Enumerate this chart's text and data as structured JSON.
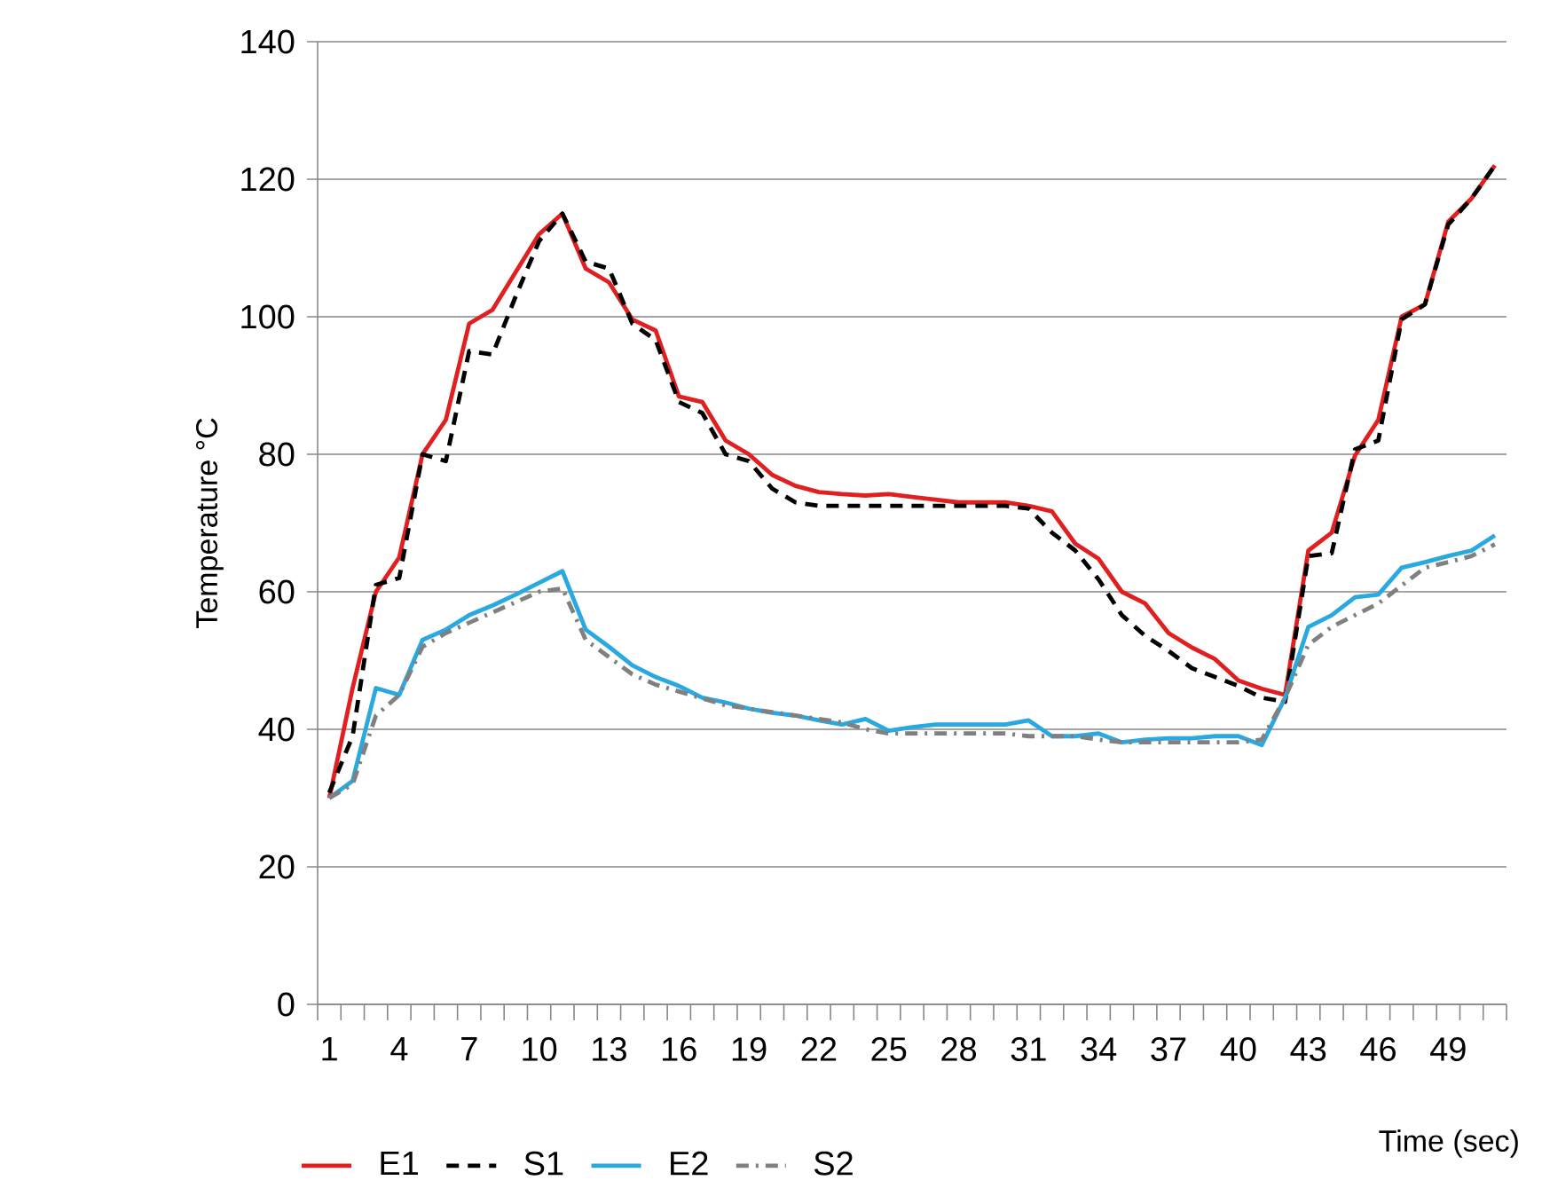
{
  "chart_data": {
    "type": "line",
    "xlabel": "Time (sec)",
    "ylabel": "Temperature °C",
    "categories": [
      "1",
      null,
      null,
      "4",
      null,
      null,
      "7",
      null,
      null,
      "10",
      null,
      null,
      "13",
      null,
      null,
      "16",
      null,
      null,
      "19",
      null,
      null,
      "22",
      null,
      null,
      "25",
      null,
      null,
      "28",
      null,
      null,
      "31",
      null,
      null,
      "34",
      null,
      null,
      "37",
      null,
      null,
      "40",
      null,
      null,
      "43",
      null,
      null,
      "46",
      null,
      null,
      "49",
      null,
      null
    ],
    "ylim": [
      0,
      140
    ],
    "yticks": [
      0,
      20,
      40,
      60,
      80,
      100,
      120,
      140
    ],
    "grid": "y",
    "legend": "bottom",
    "marker": "none",
    "series": [
      {
        "name": "E1",
        "color": "#e02020",
        "line_style": "solid",
        "values": [
          30,
          46,
          60,
          65,
          80,
          85,
          99,
          101,
          106.5,
          112,
          115,
          107,
          105,
          99.6,
          98,
          88.4,
          87.6,
          82,
          80,
          77,
          75.4,
          74.5,
          74.2,
          74,
          74.2,
          73.8,
          73.4,
          73,
          73,
          73,
          72.5,
          71.7,
          67,
          64.8,
          60,
          58.3,
          54,
          51.9,
          50.2,
          47.1,
          45.9,
          45,
          66,
          68.6,
          79.8,
          85,
          100,
          101.8,
          113.8,
          117.2,
          122
        ]
      },
      {
        "name": "S1",
        "color": "#000000",
        "line_style": "dashed",
        "values": [
          30.8,
          39,
          61,
          62,
          80,
          79,
          95,
          94.5,
          103,
          111,
          115,
          108,
          107,
          99,
          96.6,
          87.6,
          86,
          80,
          79,
          75,
          73,
          72.5,
          72.5,
          72.5,
          72.5,
          72.5,
          72.5,
          72.5,
          72.5,
          72.5,
          72.1,
          68.6,
          66,
          61.8,
          56.6,
          53.6,
          51.4,
          48.9,
          47.6,
          46.3,
          44.6,
          44,
          65.2,
          65.6,
          80.7,
          82,
          99.6,
          101.8,
          113.4,
          117.2,
          122
        ]
      },
      {
        "name": "E2",
        "color": "#29a9e0",
        "line_style": "solid",
        "values": [
          30,
          32.5,
          46,
          45,
          53,
          54.5,
          56.6,
          58,
          59.6,
          61.3,
          63,
          54.5,
          52,
          49.3,
          47.6,
          46.3,
          44.6,
          43.9,
          43,
          42.4,
          42,
          41.3,
          40.7,
          41.5,
          39.8,
          40.3,
          40.7,
          40.7,
          40.7,
          40.7,
          41.3,
          39,
          39,
          39.4,
          38.1,
          38.5,
          38.7,
          38.7,
          39,
          39,
          37.7,
          44.6,
          54.9,
          56.6,
          59.2,
          59.6,
          63.5,
          64.3,
          65.2,
          66,
          68.2
        ]
      },
      {
        "name": "S2",
        "color": "#808080",
        "line_style": "dashdot",
        "values": [
          30,
          32,
          42,
          45,
          52,
          54,
          55.5,
          57,
          58.5,
          60,
          60.5,
          53,
          50.5,
          48,
          46.5,
          45.5,
          44.5,
          43.5,
          43,
          42.5,
          42,
          41.5,
          41,
          40,
          39.4,
          39.4,
          39.4,
          39.4,
          39.4,
          39.4,
          39,
          39,
          39,
          38.5,
          38.1,
          38.1,
          38.1,
          38.1,
          38.1,
          38.1,
          38.5,
          44.6,
          52.3,
          54.9,
          56.6,
          58.3,
          60.9,
          63.5,
          64.3,
          65.2,
          66.9
        ]
      }
    ]
  }
}
